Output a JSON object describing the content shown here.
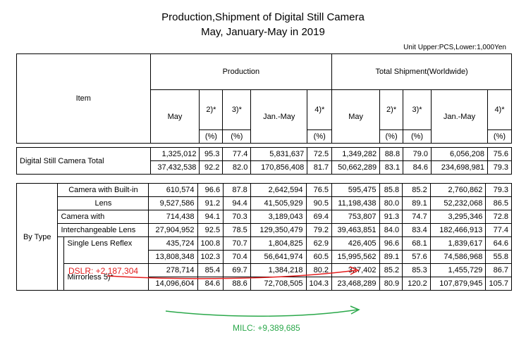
{
  "title_line1": "Production,Shipment of Digital Still Camera",
  "title_line2": "May, January-May in 2019",
  "unit_note": "Unit Upper:PCS,Lower:1,000Yen",
  "header": {
    "item": "Item",
    "production": "Production",
    "shipment": "Total Shipment(Worldwide)",
    "may": "May",
    "c2": "2)*",
    "c3": "3)*",
    "jan_may": "Jan.-May",
    "c4": "4)*",
    "pct": "(%)"
  },
  "total": {
    "label": "Digital Still Camera Total",
    "upper": [
      "1,325,012",
      "95.3",
      "77.4",
      "5,831,637",
      "72.5",
      "1,349,282",
      "88.8",
      "79.0",
      "6,056,208",
      "75.6"
    ],
    "lower": [
      "37,432,538",
      "92.2",
      "82.0",
      "170,856,408",
      "81.7",
      "50,662,289",
      "83.1",
      "84.6",
      "234,698,981",
      "79.3"
    ]
  },
  "by_type_label": "By Type",
  "types": [
    {
      "label_a": "Camera with Built-in",
      "label_b": "Lens",
      "upper": [
        "610,574",
        "96.6",
        "87.8",
        "2,642,594",
        "76.5",
        "595,475",
        "85.8",
        "85.2",
        "2,760,862",
        "79.3"
      ],
      "lower": [
        "9,527,586",
        "91.2",
        "94.4",
        "41,505,929",
        "90.5",
        "11,198,438",
        "80.0",
        "89.1",
        "52,232,068",
        "86.5"
      ]
    },
    {
      "label_a": "Camera with",
      "label_b": "Interchangeable Lens",
      "upper": [
        "714,438",
        "94.1",
        "70.3",
        "3,189,043",
        "69.4",
        "753,807",
        "91.3",
        "74.7",
        "3,295,346",
        "72.8"
      ],
      "lower": [
        "27,904,952",
        "92.5",
        "78.5",
        "129,350,479",
        "79.2",
        "39,463,851",
        "84.0",
        "83.4",
        "182,466,913",
        "77.4"
      ]
    },
    {
      "label_a": "Single Lens Reflex",
      "upper": [
        "435,724",
        "100.8",
        "70.7",
        "1,804,825",
        "62.9",
        "426,405",
        "96.6",
        "68.1",
        "1,839,617",
        "64.6"
      ],
      "lower": [
        "13,808,348",
        "102.3",
        "70.4",
        "56,641,974",
        "60.5",
        "15,995,562",
        "89.1",
        "57.6",
        "74,586,968",
        "55.8"
      ]
    },
    {
      "label_a": "Mirrorless 5)*",
      "upper": [
        "278,714",
        "85.4",
        "69.7",
        "1,384,218",
        "80.2",
        "327,402",
        "85.2",
        "85.3",
        "1,455,729",
        "86.7"
      ],
      "lower": [
        "14,096,604",
        "84.6",
        "88.6",
        "72,708,505",
        "104.3",
        "23,468,289",
        "80.9",
        "120.2",
        "107,879,945",
        "105.7"
      ]
    }
  ],
  "annotations": {
    "dslr": "DSLR: +2,187,304",
    "milc": "MILC: +9,389,685",
    "red_color": "#e31d1d",
    "green_color": "#2aa84a"
  }
}
